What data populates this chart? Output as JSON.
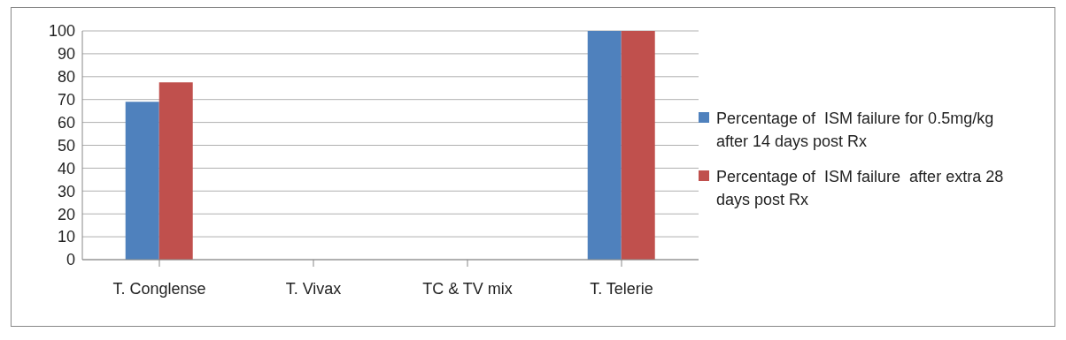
{
  "chart_data": {
    "type": "bar",
    "categories": [
      "T. Conglense",
      "T. Vivax",
      "TC & TV mix",
      "T. Telerie"
    ],
    "series": [
      {
        "name": "Percentage of  ISM failure for 0.5mg/kg  after 14 days post Rx",
        "color": "#4f81bd",
        "values": [
          69,
          0,
          0,
          100
        ]
      },
      {
        "name": "Percentage of  ISM failure  after extra 28 days post Rx",
        "color": "#c0504d",
        "values": [
          77.5,
          0,
          0,
          100
        ]
      }
    ],
    "ylim": [
      0,
      100
    ],
    "yticks": [
      0,
      10,
      20,
      30,
      40,
      50,
      60,
      70,
      80,
      90,
      100
    ],
    "grid": "y",
    "legend": "right"
  }
}
